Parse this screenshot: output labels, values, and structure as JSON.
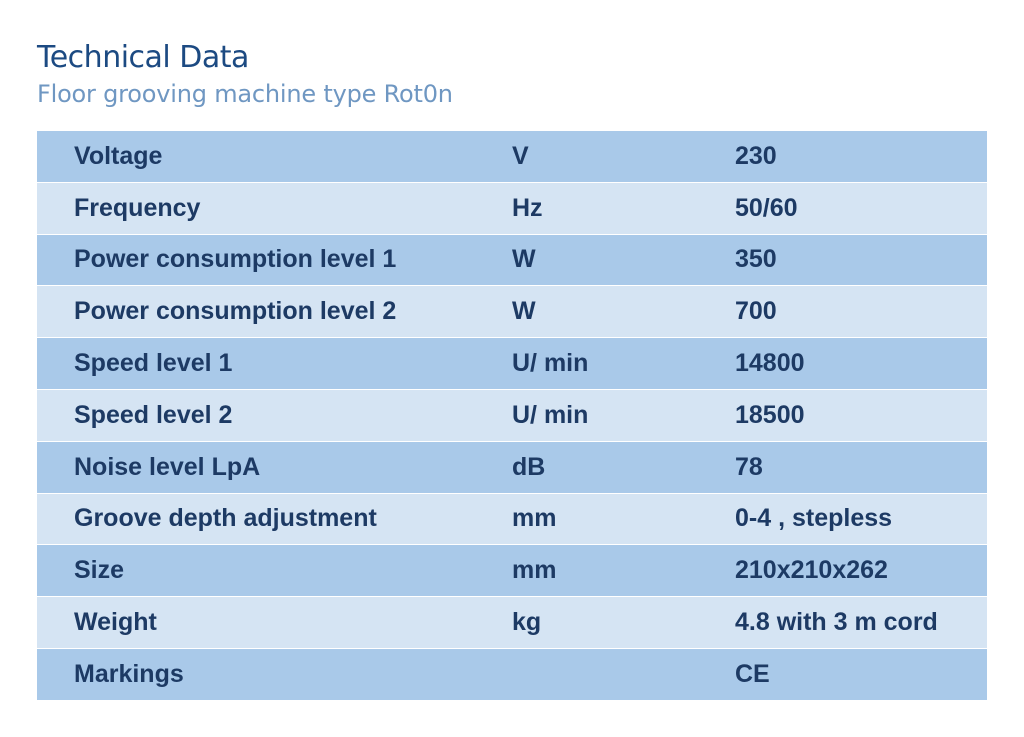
{
  "header": {
    "title": "Technical Data",
    "subtitle": "Floor grooving machine type Rot0n"
  },
  "table": {
    "rows": [
      {
        "parameter": "Voltage",
        "unit": "V",
        "value": "230"
      },
      {
        "parameter": "Frequency",
        "unit": "Hz",
        "value": "50/60"
      },
      {
        "parameter": "Power consumption level 1",
        "unit": "W",
        "value": "350"
      },
      {
        "parameter": "Power consumption level 2",
        "unit": "W",
        "value": "700"
      },
      {
        "parameter": "Speed level 1",
        "unit": "U/ min",
        "value": "14800"
      },
      {
        "parameter": "Speed level 2",
        "unit": "U/ min",
        "value": "18500"
      },
      {
        "parameter": "Noise level LpA",
        "unit": "dB",
        "value": "78"
      },
      {
        "parameter": "Groove depth adjustment",
        "unit": "mm",
        "value": "0-4 , stepless"
      },
      {
        "parameter": "Size",
        "unit": "mm",
        "value": "210x210x262"
      },
      {
        "parameter": "Weight",
        "unit": "kg",
        "value": "4.8 with 3 m cord"
      },
      {
        "parameter": "Markings",
        "unit": "",
        "value": "CE"
      }
    ]
  },
  "colors": {
    "title": "#1c4a82",
    "subtitle": "#6f97c2",
    "row_dark": "#a9c9e9",
    "row_light": "#d5e4f3",
    "text": "#1d3a64"
  }
}
